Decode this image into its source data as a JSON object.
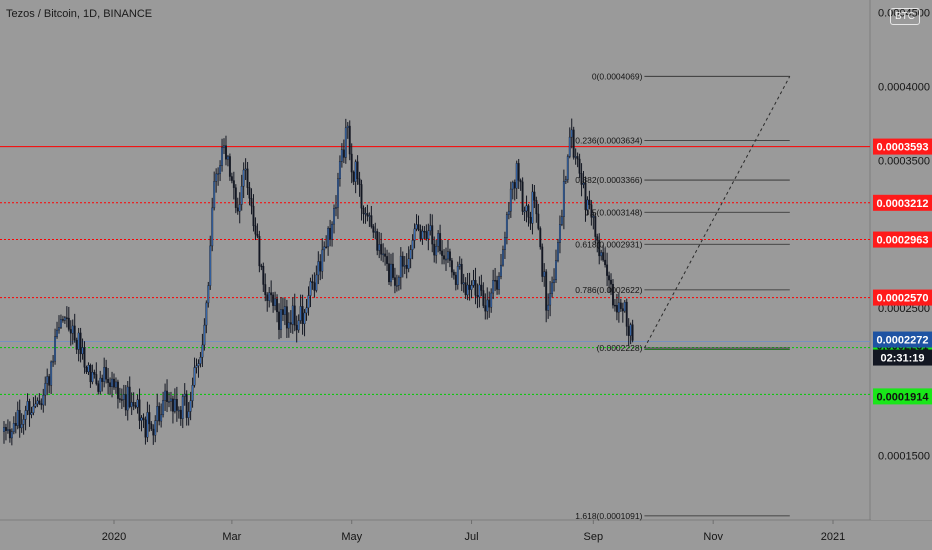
{
  "header": {
    "title": "Tezos / Bitcoin, 1D, BINANCE",
    "currency_button": "BTC"
  },
  "price_axis": {
    "ticks": [
      "0.0004500",
      "0.0004000",
      "0.0003500",
      "0.0002500",
      "0.0001500"
    ]
  },
  "time_axis": {
    "ticks": [
      "2020",
      "Mar",
      "May",
      "Jul",
      "Sep",
      "Nov",
      "2021"
    ]
  },
  "colors": {
    "background": "#9a9a9a",
    "candle": "#131722",
    "candle_up_edge": "#3a6fb8",
    "red_level": "#ff0000",
    "green_level": "#00cc00",
    "last_price_label": "#1e53a3",
    "timer_label": "#131722"
  },
  "chart_data": {
    "type": "candlestick",
    "title": "Tezos / Bitcoin, 1D, BINANCE",
    "y_scale": "linear",
    "ylim": [
      0.0001,
      0.00047
    ],
    "x_range": [
      "2019-11-06",
      "2021-02-15"
    ],
    "grid": false,
    "path_points": [
      [
        "2019-11-06",
        0.000162
      ],
      [
        "2019-11-18",
        0.000179
      ],
      [
        "2019-11-28",
        0.000198
      ],
      [
        "2019-12-06",
        0.000244
      ],
      [
        "2019-12-12",
        0.000232
      ],
      [
        "2019-12-20",
        0.000205
      ],
      [
        "2020-01-02",
        0.000195
      ],
      [
        "2020-01-13",
        0.000179
      ],
      [
        "2020-01-18",
        0.000168
      ],
      [
        "2020-01-28",
        0.000185
      ],
      [
        "2020-02-07",
        0.00018
      ],
      [
        "2020-02-14",
        0.000218
      ],
      [
        "2020-02-18",
        0.000265
      ],
      [
        "2020-02-21",
        0.00033
      ],
      [
        "2020-02-25",
        0.00036
      ],
      [
        "2020-02-28",
        0.000355
      ],
      [
        "2020-03-04",
        0.00031
      ],
      [
        "2020-03-08",
        0.000345
      ],
      [
        "2020-03-12",
        0.00031
      ],
      [
        "2020-03-16",
        0.00027
      ],
      [
        "2020-03-22",
        0.000248
      ],
      [
        "2020-04-01",
        0.000242
      ],
      [
        "2020-04-06",
        0.000242
      ],
      [
        "2020-04-15",
        0.00028
      ],
      [
        "2020-04-23",
        0.00032
      ],
      [
        "2020-04-28",
        0.00037
      ],
      [
        "2020-05-03",
        0.00034
      ],
      [
        "2020-05-08",
        0.000315
      ],
      [
        "2020-05-18",
        0.00028
      ],
      [
        "2020-05-23",
        0.00027
      ],
      [
        "2020-06-01",
        0.000295
      ],
      [
        "2020-06-08",
        0.000305
      ],
      [
        "2020-06-13",
        0.000295
      ],
      [
        "2020-06-20",
        0.00028
      ],
      [
        "2020-06-27",
        0.00027
      ],
      [
        "2020-07-03",
        0.00026
      ],
      [
        "2020-07-10",
        0.000255
      ],
      [
        "2020-07-15",
        0.00027
      ],
      [
        "2020-07-20",
        0.00032
      ],
      [
        "2020-07-24",
        0.000345
      ],
      [
        "2020-07-29",
        0.00031
      ],
      [
        "2020-08-02",
        0.000325
      ],
      [
        "2020-08-05",
        0.00029
      ],
      [
        "2020-08-08",
        0.000255
      ],
      [
        "2020-08-12",
        0.00027
      ],
      [
        "2020-08-17",
        0.000325
      ],
      [
        "2020-08-20",
        0.00037
      ],
      [
        "2020-08-25",
        0.000345
      ],
      [
        "2020-08-28",
        0.000325
      ],
      [
        "2020-09-04",
        0.000295
      ],
      [
        "2020-09-08",
        0.000265
      ],
      [
        "2020-09-13",
        0.00025
      ],
      [
        "2020-09-16",
        0.000252
      ],
      [
        "2020-09-21",
        0.000228
      ]
    ],
    "horizontal_levels": [
      {
        "value": 0.0003593,
        "label": "0.0003593",
        "style": "solid",
        "color": "#ff0000"
      },
      {
        "value": 0.0003212,
        "label": "0.0003212",
        "style": "dotted",
        "color": "#ff0000"
      },
      {
        "value": 0.0002963,
        "label": "0.0002963",
        "style": "dotted",
        "color": "#ff0000"
      },
      {
        "value": 0.000257,
        "label": "0.0002570",
        "style": "dotted",
        "color": "#ff0000"
      },
      {
        "value": 0.0002231,
        "label": "0.0002231",
        "style": "dotted",
        "color": "#00cc00"
      },
      {
        "value": 0.0001914,
        "label": "0.0001914",
        "style": "dotted",
        "color": "#00cc00"
      }
    ],
    "last_price": {
      "value": 0.0002272,
      "label": "0.0002272"
    },
    "countdown": "02:31:19",
    "fibonacci": {
      "start": {
        "date": "2020-09-27",
        "price": 0.0002228
      },
      "end": {
        "date": "2020-12-10",
        "price": 0.0004069
      },
      "levels": [
        {
          "label": "0(0.0004069)",
          "value": 0.0004069
        },
        {
          "label": "0.236(0.0003634)",
          "value": 0.0003634
        },
        {
          "label": "0.382(0.0003366)",
          "value": 0.0003366
        },
        {
          "label": "0.5(0.0003148)",
          "value": 0.0003148
        },
        {
          "label": "0.618(0.0002931)",
          "value": 0.0002931
        },
        {
          "label": "0.786(0.0002622)",
          "value": 0.0002622
        },
        {
          "label": "(0.0002228)",
          "value": 0.0002228
        },
        {
          "label": "1.618(0.0001091)",
          "value": 0.0001091
        }
      ]
    }
  }
}
